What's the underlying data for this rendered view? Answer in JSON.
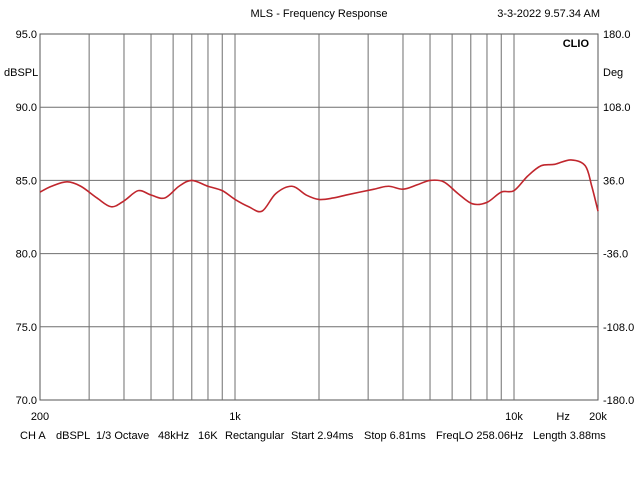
{
  "header": {
    "title": "MLS - Frequency Response",
    "timestamp": "3-3-2022 9.57.34 AM",
    "brand": "CLIO"
  },
  "status_bar": {
    "channel": "CH A",
    "unit": "dBSPL",
    "smoothing": "1/3 Octave",
    "sample_rate": "48kHz",
    "size": "16K",
    "window": "Rectangular",
    "start": "Start 2.94ms",
    "stop": "Stop 6.81ms",
    "freqlo": "FreqLO 258.06Hz",
    "length": "Length 3.88ms"
  },
  "chart_data": {
    "type": "line",
    "title": "MLS - Frequency Response",
    "xlabel": "Hz",
    "ylabel": "dBSPL",
    "y2label": "Deg",
    "x_scale": "log",
    "xlim": [
      200,
      20000
    ],
    "ylim": [
      70.0,
      95.0
    ],
    "y2lim": [
      -180.0,
      180.0
    ],
    "grid": true,
    "legend": "none",
    "x_tick_labels": [
      {
        "value": 200,
        "label": "200"
      },
      {
        "value": 1000,
        "label": "1k"
      },
      {
        "value": 10000,
        "label": "10k"
      },
      {
        "value": 15000,
        "label": "Hz"
      },
      {
        "value": 20000,
        "label": "20k"
      }
    ],
    "y_tick_labels": [
      "95.0",
      "90.0",
      "85.0",
      "80.0",
      "75.0",
      "70.0"
    ],
    "y_ticks": [
      95,
      90,
      85,
      80,
      75,
      70
    ],
    "y2_tick_labels": [
      "180.0",
      "108.0",
      "36.0",
      "-36.0",
      "-108.0",
      "-180.0"
    ],
    "series": [
      {
        "color": "#c0262d",
        "x": [
          200,
          220,
          250,
          280,
          320,
          360,
          400,
          450,
          500,
          560,
          630,
          700,
          800,
          900,
          1000,
          1120,
          1250,
          1400,
          1600,
          1800,
          2000,
          2250,
          2500,
          2800,
          3150,
          3550,
          4000,
          4500,
          5000,
          5600,
          6300,
          7100,
          8000,
          9000,
          10000,
          11200,
          12500,
          14000,
          16000,
          18000,
          19000,
          20000
        ],
        "y": [
          84.2,
          84.6,
          84.9,
          84.6,
          83.8,
          83.2,
          83.6,
          84.3,
          84.0,
          83.8,
          84.6,
          85.0,
          84.6,
          84.3,
          83.7,
          83.2,
          82.9,
          84.1,
          84.6,
          84.0,
          83.7,
          83.8,
          84.0,
          84.2,
          84.4,
          84.6,
          84.4,
          84.7,
          85.0,
          84.9,
          84.1,
          83.4,
          83.5,
          84.2,
          84.3,
          85.3,
          86.0,
          86.1,
          86.4,
          86.0,
          84.6,
          82.9
        ]
      }
    ]
  }
}
